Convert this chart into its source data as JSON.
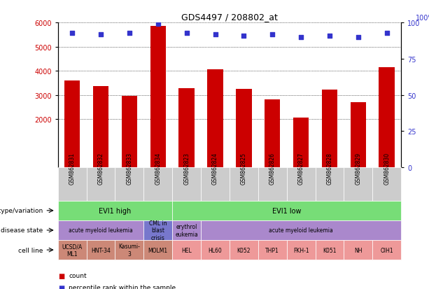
{
  "title": "GDS4497 / 208802_at",
  "samples": [
    "GSM862831",
    "GSM862832",
    "GSM862833",
    "GSM862834",
    "GSM862823",
    "GSM862824",
    "GSM862825",
    "GSM862826",
    "GSM862827",
    "GSM862828",
    "GSM862829",
    "GSM862830"
  ],
  "counts": [
    3600,
    3380,
    2960,
    5850,
    3280,
    4060,
    3260,
    2820,
    2060,
    3230,
    2700,
    4160
  ],
  "percentiles": [
    93,
    92,
    93,
    99,
    93,
    92,
    91,
    92,
    90,
    91,
    90,
    93
  ],
  "ylim_left": [
    0,
    6000
  ],
  "ylim_right": [
    0,
    100
  ],
  "yticks_left": [
    2000,
    3000,
    4000,
    5000,
    6000
  ],
  "yticks_right": [
    0,
    25,
    50,
    75,
    100
  ],
  "bar_color": "#cc0000",
  "dot_color": "#3333cc",
  "bar_bottom": 0,
  "chart_bg": "#ffffff",
  "genotype_groups": [
    {
      "label": "EVI1 high",
      "start": 0,
      "end": 4,
      "color": "#77dd77"
    },
    {
      "label": "EVI1 low",
      "start": 4,
      "end": 12,
      "color": "#77dd77"
    }
  ],
  "disease_groups": [
    {
      "label": "acute myeloid leukemia",
      "start": 0,
      "end": 3,
      "color": "#aa88cc"
    },
    {
      "label": "CML in\nblast\ncrisis",
      "start": 3,
      "end": 4,
      "color": "#7777cc"
    },
    {
      "label": "erythrol\neukemia",
      "start": 4,
      "end": 5,
      "color": "#aa88cc"
    },
    {
      "label": "acute myeloid leukemia",
      "start": 5,
      "end": 12,
      "color": "#aa88cc"
    }
  ],
  "cell_lines": [
    {
      "label": "UCSD/A\nML1",
      "start": 0,
      "end": 1,
      "color": "#cc8877"
    },
    {
      "label": "HNT-34",
      "start": 1,
      "end": 2,
      "color": "#cc8877"
    },
    {
      "label": "Kasumi-\n3",
      "start": 2,
      "end": 3,
      "color": "#cc8877"
    },
    {
      "label": "MOLM1",
      "start": 3,
      "end": 4,
      "color": "#cc8877"
    },
    {
      "label": "HEL",
      "start": 4,
      "end": 5,
      "color": "#ee9999"
    },
    {
      "label": "HL60",
      "start": 5,
      "end": 6,
      "color": "#ee9999"
    },
    {
      "label": "K052",
      "start": 6,
      "end": 7,
      "color": "#ee9999"
    },
    {
      "label": "THP1",
      "start": 7,
      "end": 8,
      "color": "#ee9999"
    },
    {
      "label": "FKH-1",
      "start": 8,
      "end": 9,
      "color": "#ee9999"
    },
    {
      "label": "K051",
      "start": 9,
      "end": 10,
      "color": "#ee9999"
    },
    {
      "label": "NH",
      "start": 10,
      "end": 11,
      "color": "#ee9999"
    },
    {
      "label": "OIH1",
      "start": 11,
      "end": 12,
      "color": "#ee9999"
    }
  ],
  "row_labels": [
    "genotype/variation",
    "disease state",
    "cell line"
  ],
  "sample_box_color": "#cccccc",
  "right_axis_label": "100%"
}
